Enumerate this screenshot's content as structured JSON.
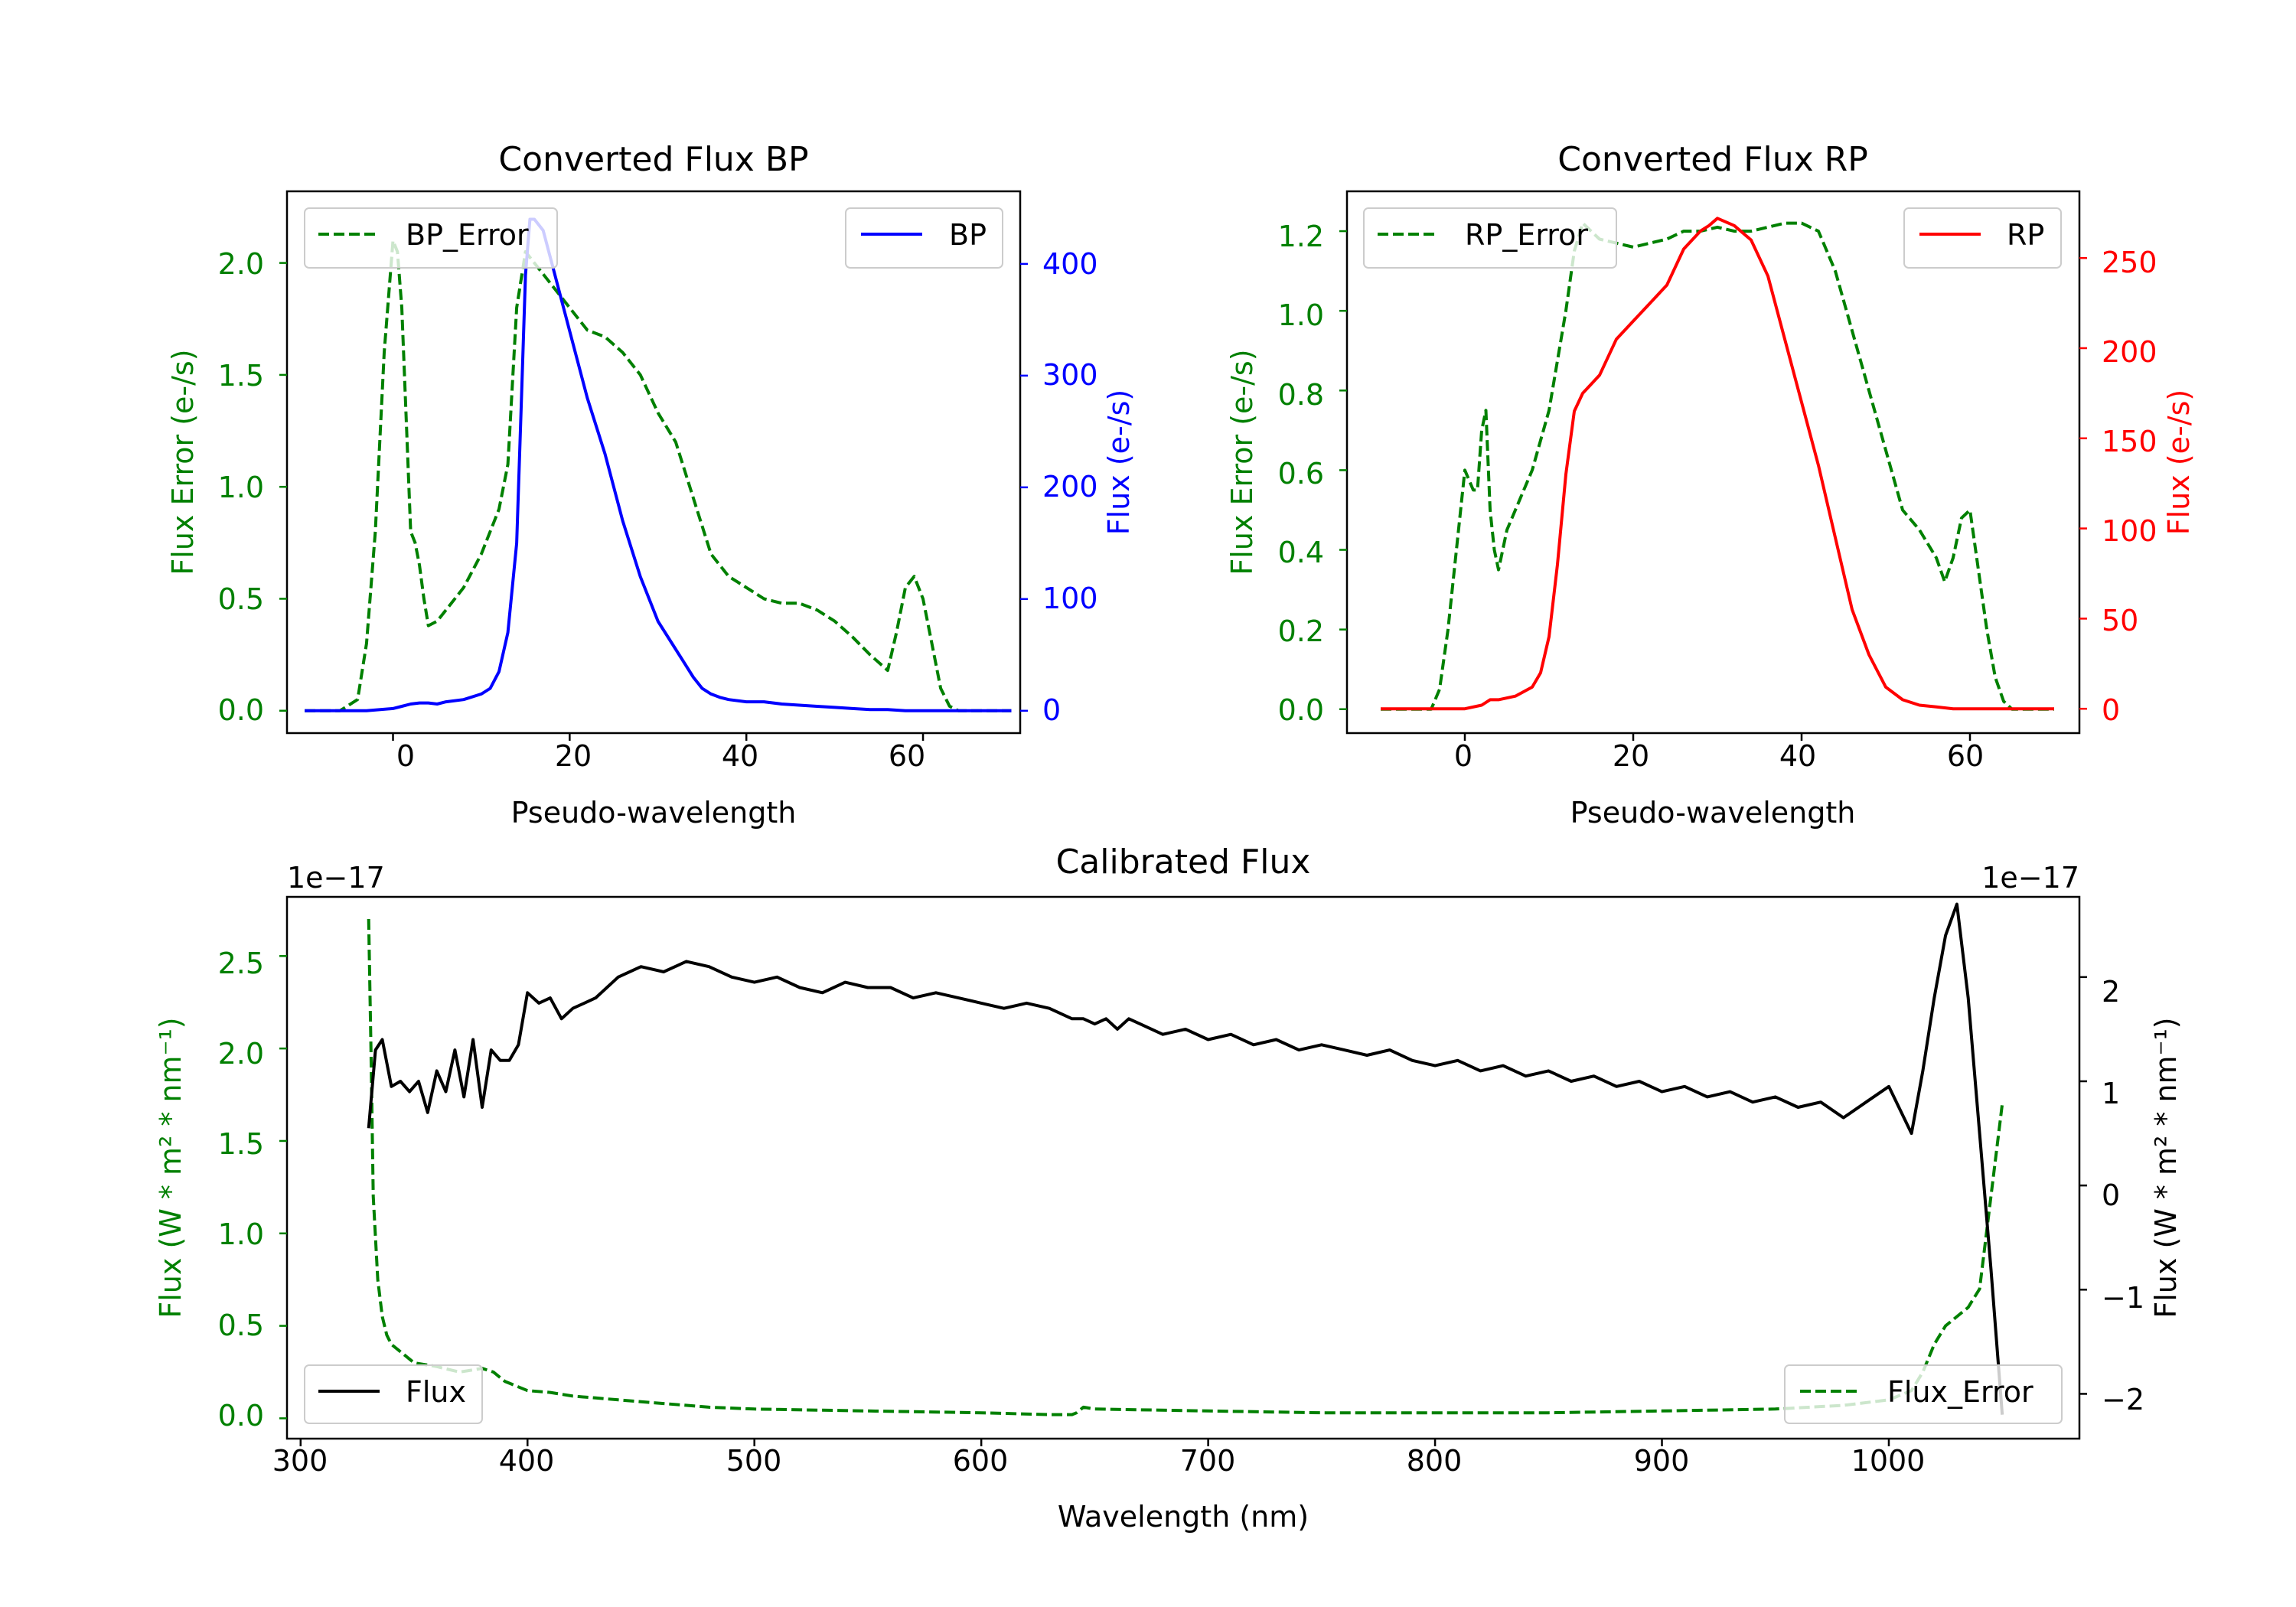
{
  "chart_data": [
    {
      "type": "line",
      "title": "Converted Flux BP",
      "xlabel": "Pseudo-wavelength",
      "ylabel_left": "Flux Error (e-/s)",
      "ylabel_right": "Flux (e-/s)",
      "xlim": [
        -12,
        71
      ],
      "ylim_left": [
        -0.1,
        2.32
      ],
      "ylim_right": [
        -20,
        465
      ],
      "xticks": [
        "0",
        "20",
        "40",
        "60"
      ],
      "yticks_left": [
        "0.0",
        "0.5",
        "1.0",
        "1.5",
        "2.0"
      ],
      "yticks_right": [
        "0",
        "100",
        "200",
        "300",
        "400"
      ],
      "colors": {
        "left_axis": "#008000",
        "right_axis": "#0000ff"
      },
      "legend_left": {
        "label": "BP_Error",
        "position": "upper left"
      },
      "legend_right": {
        "label": "BP",
        "position": "upper right"
      },
      "series": [
        {
          "name": "BP_Error",
          "axis": "left",
          "color": "#008000",
          "style": "dashed",
          "x": [
            -10,
            -6,
            -4,
            -3,
            -2,
            -1,
            0,
            0.5,
            1,
            2,
            2.5,
            3,
            3.5,
            4,
            5,
            6,
            8,
            10,
            12,
            13,
            14,
            15,
            16,
            17,
            18,
            20,
            22,
            24,
            26,
            28,
            30,
            32,
            34,
            36,
            38,
            40,
            42,
            44,
            46,
            48,
            50,
            52,
            54,
            56,
            57,
            58,
            59,
            60,
            61,
            62,
            63,
            64,
            65,
            67,
            70
          ],
          "values": [
            0,
            0,
            0.05,
            0.3,
            0.8,
            1.6,
            2.1,
            2.05,
            1.8,
            0.8,
            0.75,
            0.65,
            0.5,
            0.38,
            0.4,
            0.45,
            0.55,
            0.7,
            0.9,
            1.1,
            1.8,
            2.05,
            2.0,
            1.95,
            1.9,
            1.8,
            1.7,
            1.67,
            1.6,
            1.5,
            1.33,
            1.2,
            0.95,
            0.7,
            0.6,
            0.55,
            0.5,
            0.48,
            0.48,
            0.45,
            0.4,
            0.33,
            0.25,
            0.18,
            0.35,
            0.55,
            0.6,
            0.5,
            0.3,
            0.1,
            0.02,
            0,
            0,
            0,
            0
          ]
        },
        {
          "name": "BP",
          "axis": "right",
          "color": "#0000ff",
          "style": "solid",
          "x": [
            -10,
            -5,
            -3,
            0,
            1,
            2,
            3,
            4,
            5,
            6,
            8,
            10,
            11,
            12,
            13,
            14,
            14.5,
            15,
            15.5,
            16,
            17,
            18,
            20,
            22,
            24,
            26,
            28,
            30,
            32,
            34,
            35,
            36,
            37,
            38,
            40,
            42,
            44,
            46,
            48,
            50,
            52,
            54,
            56,
            58,
            60,
            62,
            64,
            66,
            68,
            70
          ],
          "values": [
            0,
            0,
            0,
            2,
            4,
            6,
            7,
            7,
            6,
            8,
            10,
            15,
            20,
            35,
            70,
            150,
            270,
            390,
            440,
            440,
            430,
            400,
            340,
            280,
            230,
            170,
            120,
            80,
            55,
            30,
            20,
            15,
            12,
            10,
            8,
            8,
            6,
            5,
            4,
            3,
            2,
            1,
            1,
            0,
            0,
            0,
            0,
            0,
            0,
            0
          ]
        }
      ]
    },
    {
      "type": "line",
      "title": "Converted Flux RP",
      "xlabel": "Pseudo-wavelength",
      "ylabel_left": "Flux Error (e-/s)",
      "ylabel_right": "Flux (e-/s)",
      "xlim": [
        -14,
        73
      ],
      "ylim_left": [
        -0.06,
        1.3
      ],
      "ylim_right": [
        -13.5,
        287
      ],
      "xticks": [
        "0",
        "20",
        "40",
        "60"
      ],
      "yticks_left": [
        "0.0",
        "0.2",
        "0.4",
        "0.6",
        "0.8",
        "1.0",
        "1.2"
      ],
      "yticks_right": [
        "0",
        "50",
        "100",
        "150",
        "200",
        "250"
      ],
      "colors": {
        "left_axis": "#008000",
        "right_axis": "#ff0000"
      },
      "legend_left": {
        "label": "RP_Error",
        "position": "upper left"
      },
      "legend_right": {
        "label": "RP",
        "position": "upper right"
      },
      "series": [
        {
          "name": "RP_Error",
          "axis": "left",
          "color": "#008000",
          "style": "dashed",
          "x": [
            -10,
            -4,
            -3,
            -2,
            -1,
            0,
            1,
            1.5,
            2,
            2.5,
            3,
            3.5,
            4,
            5,
            6,
            8,
            10,
            12,
            13,
            14,
            15,
            16,
            18,
            20,
            22,
            24,
            26,
            28,
            30,
            32,
            34,
            36,
            38,
            40,
            42,
            44,
            46,
            48,
            50,
            52,
            54,
            56,
            57,
            58,
            59,
            60,
            61,
            62,
            63,
            64,
            65,
            67,
            70
          ],
          "values": [
            0,
            0,
            0.05,
            0.2,
            0.4,
            0.6,
            0.55,
            0.55,
            0.7,
            0.75,
            0.5,
            0.4,
            0.35,
            0.45,
            0.5,
            0.6,
            0.75,
            1.0,
            1.15,
            1.22,
            1.2,
            1.18,
            1.17,
            1.16,
            1.17,
            1.18,
            1.2,
            1.2,
            1.21,
            1.2,
            1.2,
            1.21,
            1.22,
            1.22,
            1.2,
            1.1,
            0.95,
            0.8,
            0.65,
            0.5,
            0.45,
            0.38,
            0.32,
            0.38,
            0.48,
            0.5,
            0.35,
            0.2,
            0.08,
            0.02,
            0,
            0,
            0
          ]
        },
        {
          "name": "RP",
          "axis": "right",
          "color": "#ff0000",
          "style": "solid",
          "x": [
            -10,
            -5,
            0,
            2,
            3,
            4,
            6,
            8,
            9,
            10,
            11,
            12,
            13,
            14,
            15,
            16,
            18,
            20,
            22,
            24,
            26,
            28,
            29,
            30,
            31,
            32,
            34,
            36,
            38,
            40,
            42,
            44,
            46,
            48,
            50,
            52,
            54,
            56,
            58,
            60,
            62,
            64,
            66,
            68,
            70
          ],
          "values": [
            0,
            0,
            0,
            2,
            5,
            5,
            7,
            12,
            20,
            40,
            80,
            130,
            165,
            175,
            180,
            185,
            205,
            215,
            225,
            235,
            255,
            265,
            268,
            272,
            270,
            268,
            260,
            240,
            205,
            170,
            135,
            95,
            55,
            30,
            12,
            5,
            2,
            1,
            0,
            0,
            0,
            0,
            0,
            0,
            0
          ]
        }
      ]
    },
    {
      "type": "line",
      "title": "Calibrated Flux",
      "xlabel": "Wavelength (nm)",
      "ylabel_left": "Flux (W * m² * nm⁻¹)",
      "ylabel_right": "Flux (W * m² * nm⁻¹)",
      "offset_left": "1e−17",
      "offset_right": "1e−17",
      "xlim": [
        294,
        1084
      ],
      "ylim_left": [
        -0.11,
        2.82
      ],
      "ylim_right": [
        -2.43,
        2.77
      ],
      "xticks": [
        "300",
        "400",
        "500",
        "600",
        "700",
        "800",
        "900",
        "1000"
      ],
      "yticks_left": [
        "0.0",
        "0.5",
        "1.0",
        "1.5",
        "2.0",
        "2.5"
      ],
      "yticks_right": [
        "−2",
        "−1",
        "0",
        "1",
        "2"
      ],
      "colors": {
        "left_axis": "#008000",
        "right_axis": "#000000"
      },
      "legend_left": {
        "label": "Flux",
        "position": "lower left"
      },
      "legend_right": {
        "label": "Flux_Error",
        "position": "lower right"
      },
      "series": [
        {
          "name": "Flux",
          "axis": "right",
          "color": "#000000",
          "style": "solid",
          "x": [
            330,
            333,
            336,
            340,
            344,
            348,
            352,
            356,
            360,
            364,
            368,
            372,
            376,
            380,
            384,
            388,
            392,
            396,
            400,
            405,
            410,
            415,
            420,
            425,
            430,
            440,
            450,
            460,
            470,
            480,
            490,
            500,
            510,
            520,
            530,
            540,
            550,
            560,
            570,
            580,
            590,
            600,
            610,
            620,
            630,
            640,
            645,
            650,
            655,
            660,
            665,
            670,
            680,
            690,
            700,
            710,
            720,
            730,
            740,
            750,
            760,
            770,
            780,
            790,
            800,
            810,
            820,
            830,
            840,
            850,
            860,
            870,
            880,
            890,
            900,
            910,
            920,
            930,
            940,
            950,
            960,
            970,
            980,
            990,
            1000,
            1010,
            1015,
            1020,
            1025,
            1030,
            1035,
            1040,
            1045,
            1050
          ],
          "values": [
            0.55,
            1.3,
            1.4,
            0.95,
            1.0,
            0.9,
            1.0,
            0.7,
            1.1,
            0.9,
            1.3,
            0.85,
            1.4,
            0.75,
            1.3,
            1.2,
            1.2,
            1.35,
            1.85,
            1.75,
            1.8,
            1.6,
            1.7,
            1.75,
            1.8,
            2.0,
            2.1,
            2.05,
            2.15,
            2.1,
            2.0,
            1.95,
            2.0,
            1.9,
            1.85,
            1.95,
            1.9,
            1.9,
            1.8,
            1.85,
            1.8,
            1.75,
            1.7,
            1.75,
            1.7,
            1.6,
            1.6,
            1.55,
            1.6,
            1.5,
            1.6,
            1.55,
            1.45,
            1.5,
            1.4,
            1.45,
            1.35,
            1.4,
            1.3,
            1.35,
            1.3,
            1.25,
            1.3,
            1.2,
            1.15,
            1.2,
            1.1,
            1.15,
            1.05,
            1.1,
            1.0,
            1.05,
            0.95,
            1.0,
            0.9,
            0.95,
            0.85,
            0.9,
            0.8,
            0.85,
            0.75,
            0.8,
            0.65,
            0.8,
            0.95,
            0.5,
            1.1,
            1.8,
            2.4,
            2.7,
            1.8,
            0.5,
            -0.8,
            -2.2
          ]
        },
        {
          "name": "Flux_Error",
          "axis": "left",
          "color": "#008000",
          "style": "dashed",
          "x": [
            330,
            331,
            332,
            334,
            336,
            338,
            340,
            345,
            350,
            360,
            370,
            375,
            380,
            385,
            390,
            400,
            410,
            420,
            430,
            440,
            450,
            460,
            480,
            500,
            550,
            600,
            630,
            640,
            642,
            645,
            650,
            700,
            750,
            800,
            850,
            900,
            950,
            980,
            1000,
            1010,
            1015,
            1020,
            1025,
            1030,
            1035,
            1040,
            1045,
            1050
          ],
          "values": [
            2.7,
            2.0,
            1.2,
            0.75,
            0.55,
            0.45,
            0.4,
            0.35,
            0.3,
            0.28,
            0.25,
            0.26,
            0.27,
            0.25,
            0.2,
            0.15,
            0.14,
            0.12,
            0.11,
            0.1,
            0.09,
            0.08,
            0.06,
            0.05,
            0.04,
            0.03,
            0.02,
            0.02,
            0.03,
            0.06,
            0.05,
            0.04,
            0.03,
            0.03,
            0.03,
            0.04,
            0.05,
            0.07,
            0.1,
            0.15,
            0.25,
            0.4,
            0.5,
            0.55,
            0.6,
            0.7,
            1.2,
            1.7
          ]
        }
      ]
    }
  ]
}
